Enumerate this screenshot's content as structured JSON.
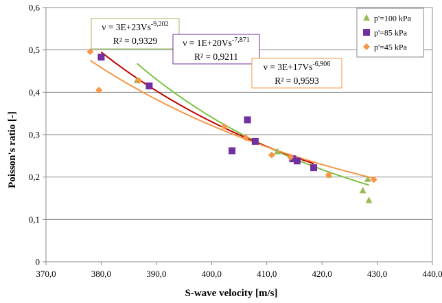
{
  "chart_data": {
    "type": "scatter",
    "xlabel": "S-wave velocity [m/s]",
    "ylabel": "Poisson's ratio [-]",
    "xlim": [
      370,
      440
    ],
    "ylim": [
      0,
      0.6
    ],
    "x_ticks": [
      "370,0",
      "380,0",
      "390,0",
      "400,0",
      "410,0",
      "420,0",
      "430,0",
      "440,0"
    ],
    "y_ticks": [
      "0",
      "0,1",
      "0,2",
      "0,3",
      "0,4",
      "0,5",
      "0,6"
    ],
    "grid": "horizontal",
    "legend_position": "top-right",
    "series": [
      {
        "name": "p'=100 kPa",
        "marker": "triangle",
        "color": "#9BBB59",
        "trend_color": "#7DC241",
        "points": [
          [
            386.5,
            0.428
          ],
          [
            388.7,
            0.415
          ],
          [
            411.9,
            0.26
          ],
          [
            421.3,
            0.205
          ],
          [
            427.4,
            0.168
          ],
          [
            428.3,
            0.195
          ],
          [
            428.5,
            0.145
          ]
        ],
        "trendline": {
          "a": 3e+23,
          "b": -9.202,
          "x_range": [
            386.5,
            428.5
          ],
          "equation_base": "ν = 3E+23Vs",
          "equation_exp": "-9,202",
          "r2": "R² = 0,9329"
        }
      },
      {
        "name": "p'=85 kPa",
        "marker": "square",
        "color": "#7030A0",
        "trend_color": "#C00000",
        "points": [
          [
            380.0,
            0.483
          ],
          [
            388.7,
            0.415
          ],
          [
            403.7,
            0.262
          ],
          [
            406.5,
            0.335
          ],
          [
            407.9,
            0.284
          ],
          [
            414.7,
            0.243
          ],
          [
            415.5,
            0.238
          ],
          [
            418.5,
            0.222
          ]
        ],
        "trendline": {
          "a": 1e+20,
          "b": -7.871,
          "x_range": [
            380.0,
            418.5
          ],
          "equation_base": "ν = 1E+20Vs",
          "equation_exp": "-7,871",
          "r2": "R² = 0,9211"
        }
      },
      {
        "name": "p'=45 kPa",
        "marker": "diamond",
        "color": "#F79646",
        "trend_color": "#F79646",
        "points": [
          [
            378.0,
            0.496
          ],
          [
            379.6,
            0.405
          ],
          [
            386.8,
            0.428
          ],
          [
            402.3,
            0.319
          ],
          [
            406.2,
            0.293
          ],
          [
            410.9,
            0.252
          ],
          [
            414.3,
            0.247
          ],
          [
            421.2,
            0.205
          ],
          [
            429.4,
            0.194
          ]
        ],
        "trendline": {
          "a": 3e+17,
          "b": -6.906,
          "x_range": [
            378.0,
            429.4
          ],
          "equation_base": "ν = 3E+17Vs",
          "equation_exp": "-6,906",
          "r2": "R² = 0,9593"
        }
      }
    ]
  }
}
